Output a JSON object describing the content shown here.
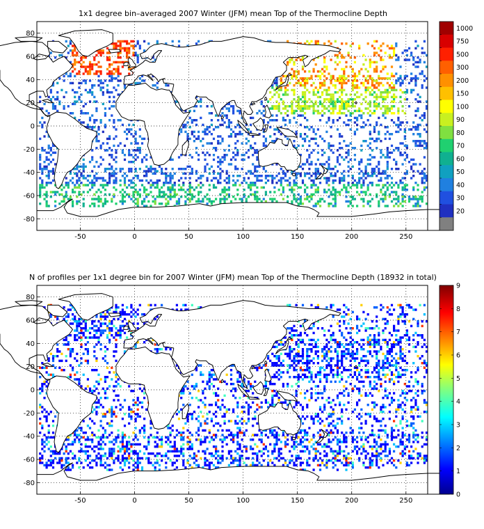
{
  "panels": [
    {
      "title": "1x1 degree bin–averaged 2007 Winter (JFM) mean Top of the Thermocline Depth",
      "x_ticks": [
        "-50",
        "0",
        "50",
        "100",
        "150",
        "200",
        "250"
      ],
      "y_ticks": [
        "80",
        "60",
        "40",
        "20",
        "0",
        "-20",
        "-40",
        "-60",
        "-80"
      ],
      "colorbar": {
        "type": "discrete",
        "labels": [
          "1000",
          "750",
          "500",
          "300",
          "200",
          "150",
          "100",
          "90",
          "80",
          "70",
          "60",
          "50",
          "40",
          "30",
          "20"
        ],
        "colors": [
          "#a00000",
          "#d80000",
          "#ff2000",
          "#ff6000",
          "#ff9000",
          "#ffc000",
          "#ffff00",
          "#c8f020",
          "#80e040",
          "#20d070",
          "#10b090",
          "#10a0c0",
          "#2080e0",
          "#2050e0",
          "#2030c0",
          "#808080"
        ]
      }
    },
    {
      "title": "N of profiles per 1x1 degree bin for 2007 Winter (JFM) mean Top of the Thermocline Depth  (18932 in total)",
      "x_ticks": [
        "-50",
        "0",
        "50",
        "100",
        "150",
        "200",
        "250"
      ],
      "y_ticks": [
        "80",
        "60",
        "40",
        "20",
        "0",
        "-20",
        "-40",
        "-60",
        "-80"
      ],
      "colorbar": {
        "type": "continuous",
        "labels": [
          "9",
          "8",
          "7",
          "6",
          "5",
          "4",
          "3",
          "2",
          "1",
          "0"
        ],
        "colors": [
          "#00008f",
          "#0000ff",
          "#0080ff",
          "#00ffff",
          "#80ff80",
          "#ffff00",
          "#ff8000",
          "#ff0000",
          "#800000"
        ]
      }
    }
  ]
}
